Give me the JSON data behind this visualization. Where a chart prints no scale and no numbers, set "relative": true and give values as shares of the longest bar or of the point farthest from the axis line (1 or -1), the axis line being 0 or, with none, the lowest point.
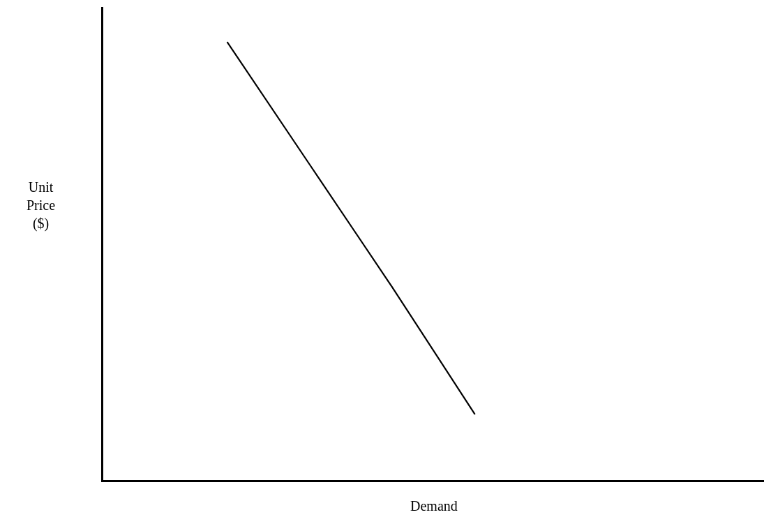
{
  "chart_data": {
    "type": "line",
    "relative": true,
    "xlabel": "Demand",
    "ylabel": "Unit\nPrice\n($)",
    "categories": [
      null,
      null,
      null,
      null,
      null,
      null,
      null,
      null
    ],
    "series": [
      {
        "color": "#000000",
        "values": [
          null,
          1,
          0.72,
          0.44,
          0.15,
          null,
          null,
          null
        ]
      }
    ],
    "marker": "none",
    "line_style": "solid"
  }
}
